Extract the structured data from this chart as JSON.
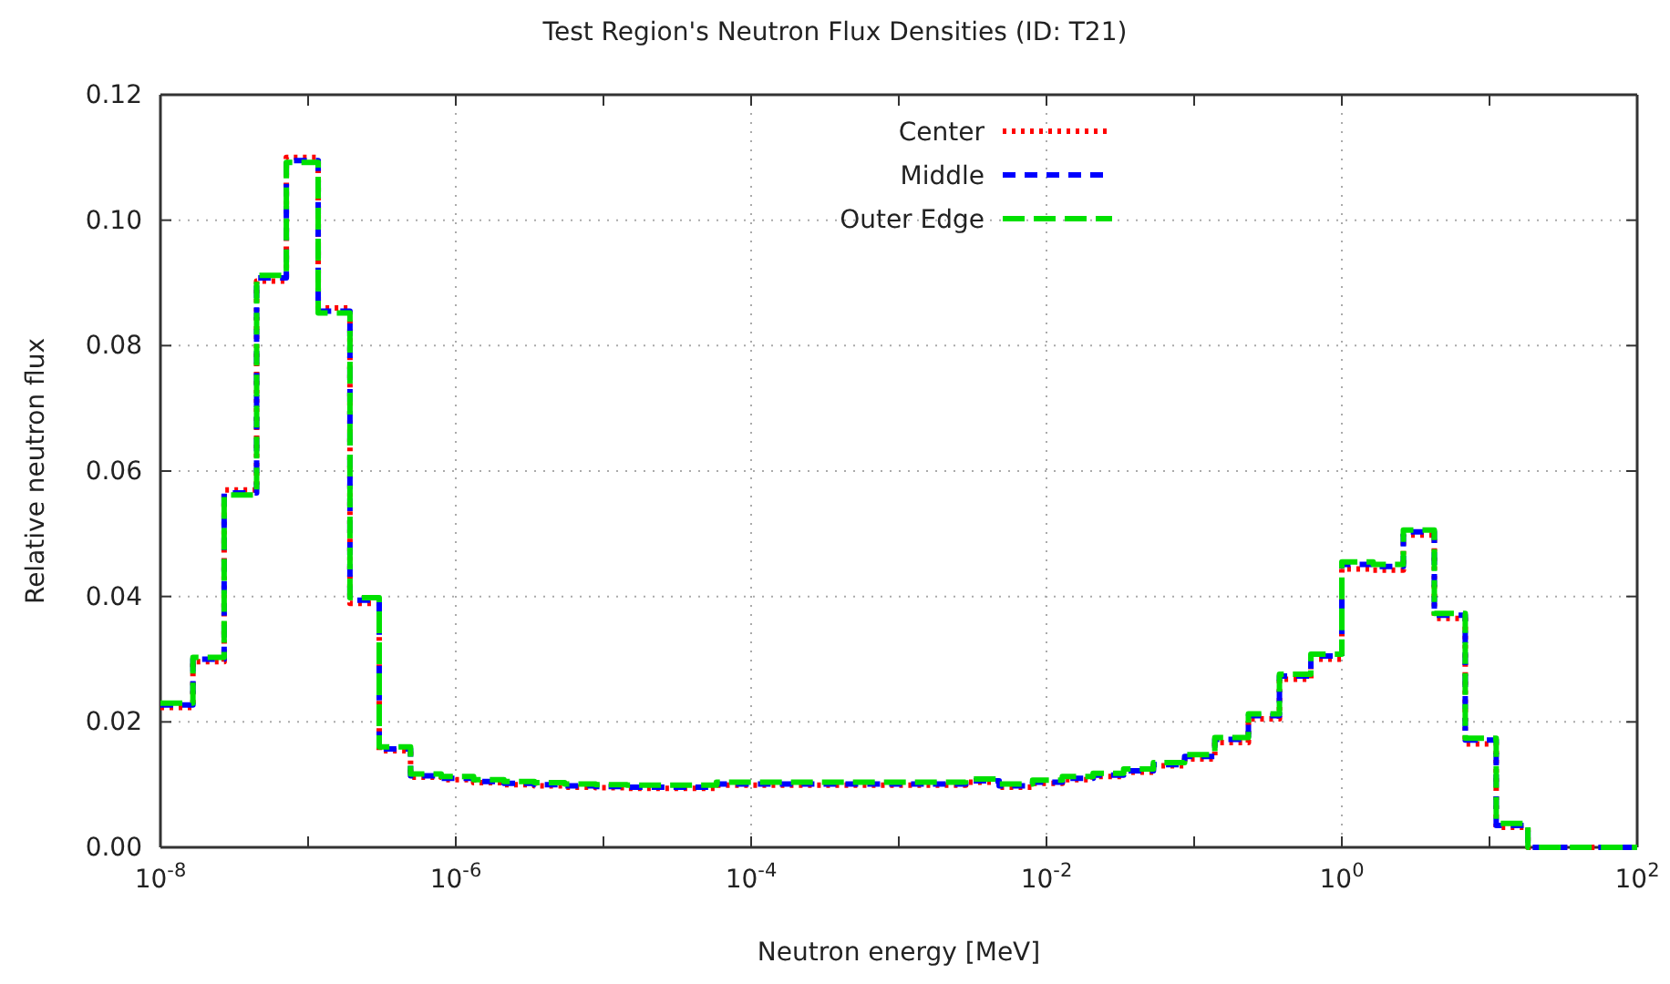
{
  "chart_data": {
    "type": "histogram",
    "title": "Test Region's Neutron Flux Densities (ID: T21)",
    "xlabel": "Neutron energy [MeV]",
    "ylabel": "Relative neutron flux",
    "log": "x",
    "grid": true,
    "legend": "top",
    "xlim": [
      1e-08,
      100
    ],
    "ylim": [
      0,
      0.12
    ],
    "xticks": [
      {
        "value": 1e-08,
        "label": "10$^{-8}$"
      },
      {
        "value": 1e-07,
        "label": null
      },
      {
        "value": 1e-06,
        "label": "10$^{-6}$"
      },
      {
        "value": 1e-05,
        "label": null
      },
      {
        "value": 0.0001,
        "label": "10$^{-4}$"
      },
      {
        "value": 0.001,
        "label": null
      },
      {
        "value": 0.01,
        "label": "10$^{-2}$"
      },
      {
        "value": 0.1,
        "label": null
      },
      {
        "value": 1,
        "label": "10$^{0}$"
      },
      {
        "value": 10,
        "label": null
      },
      {
        "value": 100,
        "label": "10$^{2}$"
      }
    ],
    "yticks": [
      {
        "value": 0,
        "label": "0.00"
      },
      {
        "value": 0.02,
        "label": "0.02"
      },
      {
        "value": 0.04,
        "label": "0.04"
      },
      {
        "value": 0.06,
        "label": "0.06"
      },
      {
        "value": 0.08,
        "label": "0.08"
      },
      {
        "value": 0.1,
        "label": "0.10"
      },
      {
        "value": 0.12,
        "label": "0.12"
      }
    ],
    "bins": [
      1e-08,
      1.66e-08,
      2.7e-08,
      4.48e-08,
      7.12e-08,
      1.17e-07,
      1.92e-07,
      3.03e-07,
      4.94e-07,
      7.97e-07,
      1.32e-06,
      2.12e-06,
      3.41e-06,
      5.46e-06,
      8.85e-06,
      1.44e-05,
      2.33e-05,
      3.67e-05,
      5.82e-05,
      9.37e-05,
      0.000152,
      0.000246,
      0.000399,
      0.000647,
      0.00105,
      0.0017,
      0.00284,
      0.00478,
      0.00805,
      0.0128,
      0.0207,
      0.0333,
      0.053,
      0.0862,
      0.138,
      0.233,
      0.378,
      0.617,
      1.0,
      1.63,
      2.61,
      4.23,
      6.85,
      11.1,
      18.2,
      29.2,
      47.3,
      100
    ],
    "series": [
      {
        "name": "Center",
        "color": "#ff0000",
        "line_style": "dotted",
        "values": [
          0.0223,
          0.0296,
          0.057,
          0.0903,
          0.11,
          0.086,
          0.0389,
          0.0154,
          0.0112,
          0.0108,
          0.0103,
          0.01,
          0.0098,
          0.0096,
          0.0095,
          0.0094,
          0.0094,
          0.0094,
          0.0099,
          0.0099,
          0.0099,
          0.0099,
          0.0099,
          0.0099,
          0.0099,
          0.0099,
          0.0104,
          0.0096,
          0.0102,
          0.0108,
          0.0113,
          0.012,
          0.013,
          0.0141,
          0.0167,
          0.0205,
          0.0268,
          0.03,
          0.0444,
          0.0442,
          0.0498,
          0.0365,
          0.0165,
          0.0032,
          0,
          0,
          0
        ]
      },
      {
        "name": "Middle",
        "color": "#0000ff",
        "line_style": "dashed",
        "values": [
          0.0227,
          0.03,
          0.0565,
          0.0908,
          0.1095,
          0.0855,
          0.0394,
          0.0157,
          0.0114,
          0.011,
          0.0105,
          0.0102,
          0.01,
          0.0098,
          0.0097,
          0.0096,
          0.0096,
          0.0096,
          0.0101,
          0.0101,
          0.0101,
          0.0101,
          0.0101,
          0.0101,
          0.0101,
          0.0101,
          0.0106,
          0.0098,
          0.0104,
          0.011,
          0.0115,
          0.0122,
          0.0132,
          0.0145,
          0.0172,
          0.021,
          0.0273,
          0.0305,
          0.0451,
          0.0448,
          0.0503,
          0.037,
          0.0171,
          0.0035,
          0,
          0,
          0
        ]
      },
      {
        "name": "Outer Edge",
        "color": "#00e000",
        "line_style": "longdash",
        "values": [
          0.023,
          0.0303,
          0.0562,
          0.0912,
          0.1092,
          0.0852,
          0.0398,
          0.016,
          0.0117,
          0.0113,
          0.0108,
          0.0105,
          0.0103,
          0.0101,
          0.01,
          0.0099,
          0.0099,
          0.0099,
          0.0104,
          0.0104,
          0.0104,
          0.0104,
          0.0104,
          0.0104,
          0.0104,
          0.0104,
          0.0109,
          0.0101,
          0.0107,
          0.0113,
          0.0118,
          0.0125,
          0.0135,
          0.0148,
          0.0175,
          0.0213,
          0.0276,
          0.0308,
          0.0455,
          0.0451,
          0.0506,
          0.0373,
          0.0174,
          0.0038,
          0,
          0,
          0
        ]
      }
    ]
  }
}
